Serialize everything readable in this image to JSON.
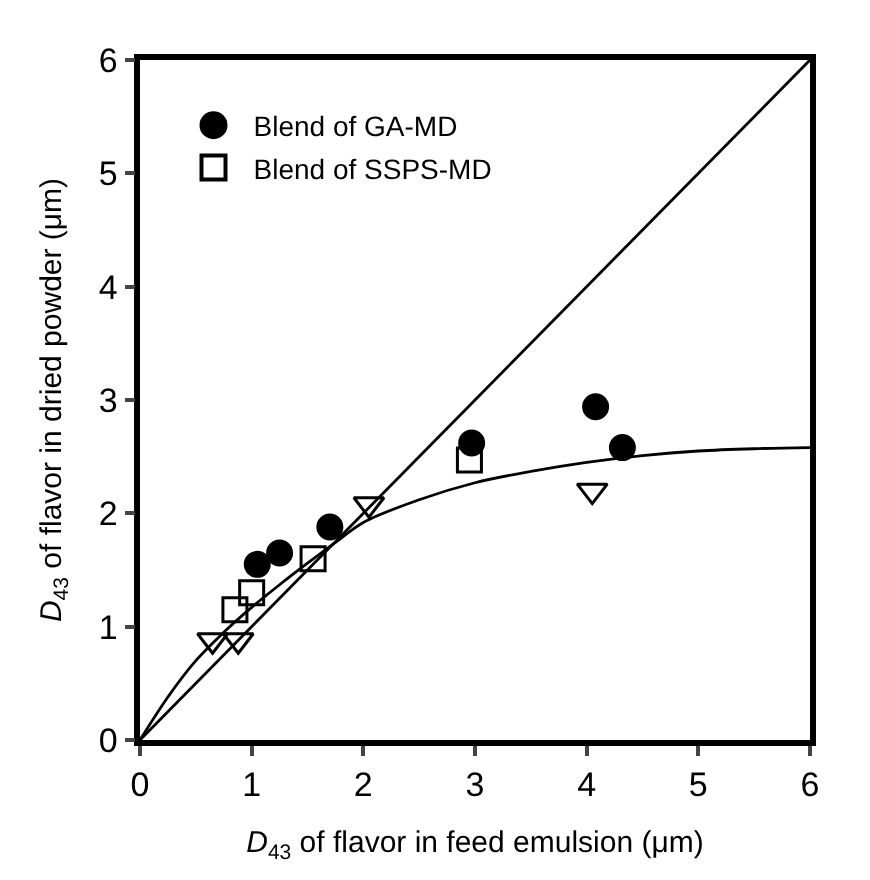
{
  "chart_data": {
    "type": "scatter",
    "xlabel": "D$_{43}$ of flavor in feed emulsion (μm)",
    "ylabel": "D$_{43}$ of flavor in dried powder (μm)",
    "xlim": [
      0,
      6
    ],
    "ylim": [
      0,
      6
    ],
    "xticks": [
      0,
      1,
      2,
      3,
      4,
      5,
      6
    ],
    "yticks": [
      0,
      1,
      2,
      3,
      4,
      5,
      6
    ],
    "legend": "top left",
    "series": [
      {
        "name": "Blend of GA-MD",
        "color": "#000000",
        "marker": "circle",
        "x": [
          1.05,
          1.25,
          1.7,
          2.97,
          4.08,
          4.32
        ],
        "values": [
          1.55,
          1.65,
          1.88,
          2.62,
          2.94,
          2.58
        ]
      },
      {
        "name": "Blend of SSPS-MD",
        "color": "#000000",
        "marker": "square",
        "x": [
          0.85,
          1.0,
          1.55,
          2.95
        ],
        "values": [
          1.15,
          1.3,
          1.6,
          2.47
        ]
      },
      {
        "color": "#000000",
        "marker": "triangle",
        "x": [
          0.65,
          0.88,
          2.05,
          4.05
        ],
        "values": [
          0.88,
          0.88,
          2.08,
          2.2
        ]
      },
      {
        "type": "line",
        "color": "#000000",
        "line_style": "solid",
        "x": [
          0,
          6
        ],
        "values": [
          0,
          6
        ]
      },
      {
        "type": "line",
        "color": "#000000",
        "line_style": "solid",
        "x": [
          0,
          0.25,
          0.5,
          0.75,
          1,
          1.25,
          1.5,
          1.8,
          2,
          2.5,
          3,
          3.5,
          4,
          4.5,
          5,
          5.5,
          6
        ],
        "values": [
          0,
          0.38,
          0.7,
          0.95,
          1.17,
          1.37,
          1.56,
          1.78,
          1.92,
          2.12,
          2.27,
          2.37,
          2.45,
          2.51,
          2.55,
          2.57,
          2.58
        ]
      }
    ]
  }
}
